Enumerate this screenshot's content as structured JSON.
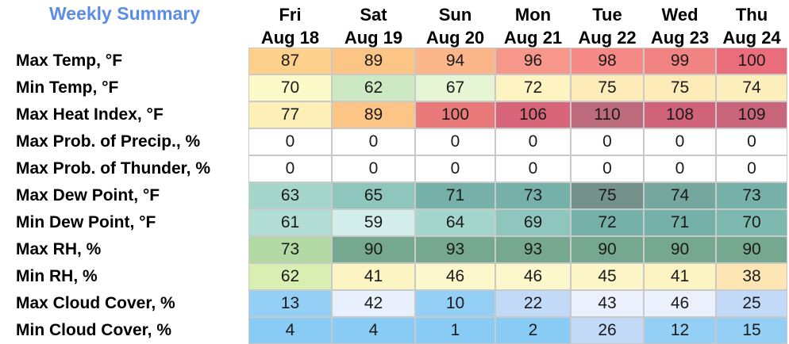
{
  "title": "Weekly Summary",
  "days": [
    {
      "dow": "Fri",
      "date": "Aug 18"
    },
    {
      "dow": "Sat",
      "date": "Aug 19"
    },
    {
      "dow": "Sun",
      "date": "Aug 20"
    },
    {
      "dow": "Mon",
      "date": "Aug 21"
    },
    {
      "dow": "Tue",
      "date": "Aug 22"
    },
    {
      "dow": "Wed",
      "date": "Aug 23"
    },
    {
      "dow": "Thu",
      "date": "Aug 24"
    }
  ],
  "rows": [
    {
      "label": "Max Temp, °F",
      "values": [
        "87",
        "89",
        "94",
        "96",
        "98",
        "99",
        "100"
      ],
      "colors": [
        "#fdd08c",
        "#fdc585",
        "#fcb68a",
        "#f7988a",
        "#f58a86",
        "#f28383",
        "#ea6d7c"
      ]
    },
    {
      "label": "Min Temp, °F",
      "values": [
        "70",
        "62",
        "67",
        "72",
        "75",
        "75",
        "74"
      ],
      "colors": [
        "#fcfac8",
        "#cde9c4",
        "#e6f6d4",
        "#fdf4c2",
        "#fdebb8",
        "#fdebb8",
        "#fdefbb"
      ]
    },
    {
      "label": "Max Heat Index, °F",
      "values": [
        "77",
        "89",
        "100",
        "106",
        "110",
        "108",
        "109"
      ],
      "colors": [
        "#fdefb8",
        "#fdc585",
        "#ea7a7a",
        "#d9657a",
        "#bf6b7e",
        "#d0637a",
        "#c9667c"
      ]
    },
    {
      "label": "Max Prob. of Precip., %",
      "values": [
        "0",
        "0",
        "0",
        "0",
        "0",
        "0",
        "0"
      ],
      "colors": [
        "#ffffff",
        "#ffffff",
        "#ffffff",
        "#ffffff",
        "#ffffff",
        "#ffffff",
        "#ffffff"
      ]
    },
    {
      "label": "Max Prob. of Thunder, %",
      "values": [
        "0",
        "0",
        "0",
        "0",
        "0",
        "0",
        "0"
      ],
      "colors": [
        "#ffffff",
        "#ffffff",
        "#ffffff",
        "#ffffff",
        "#ffffff",
        "#ffffff",
        "#ffffff"
      ]
    },
    {
      "label": "Max Dew Point, °F",
      "values": [
        "63",
        "65",
        "71",
        "73",
        "75",
        "74",
        "73"
      ],
      "colors": [
        "#a5d6cc",
        "#8ec6bd",
        "#75b1a8",
        "#75b1a8",
        "#74918a",
        "#76a79e",
        "#75b1a8"
      ]
    },
    {
      "label": "Min Dew Point, °F",
      "values": [
        "61",
        "59",
        "64",
        "69",
        "72",
        "71",
        "70"
      ],
      "colors": [
        "#b2ddd5",
        "#d3eeea",
        "#a5d6cc",
        "#8ec6bd",
        "#75b1a8",
        "#75b1a8",
        "#7eb9b0"
      ]
    },
    {
      "label": "Max RH, %",
      "values": [
        "73",
        "90",
        "93",
        "93",
        "90",
        "90",
        "90"
      ],
      "colors": [
        "#b3d9a4",
        "#76a88f",
        "#76a88f",
        "#76a88f",
        "#76a88f",
        "#76a88f",
        "#76a88f"
      ]
    },
    {
      "label": "Min RH, %",
      "values": [
        "62",
        "41",
        "46",
        "46",
        "45",
        "41",
        "38"
      ],
      "colors": [
        "#d9eeb1",
        "#fdf4c4",
        "#fdf8cb",
        "#fdf8cb",
        "#fdf6c8",
        "#fdf4c4",
        "#fde6b3"
      ]
    },
    {
      "label": "Max Cloud Cover, %",
      "values": [
        "13",
        "42",
        "10",
        "22",
        "43",
        "46",
        "25"
      ],
      "colors": [
        "#94cff6",
        "#e8f0fd",
        "#94cff6",
        "#c2d9f8",
        "#eaf1fd",
        "#eaf1fd",
        "#c2d9f8"
      ]
    },
    {
      "label": "Min Cloud Cover, %",
      "values": [
        "4",
        "4",
        "1",
        "2",
        "26",
        "12",
        "15"
      ],
      "colors": [
        "#88cbf5",
        "#88cbf5",
        "#88cbf5",
        "#88cbf5",
        "#c2d9f8",
        "#94cff6",
        "#94cff6"
      ]
    }
  ]
}
